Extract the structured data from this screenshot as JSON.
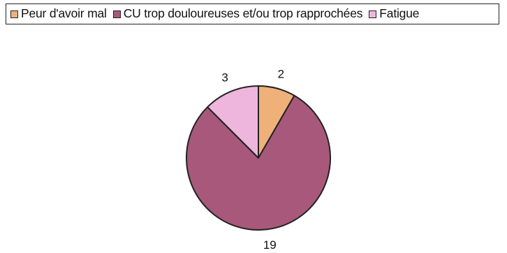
{
  "chart_data": {
    "type": "pie",
    "categories": [
      "Peur d'avoir mal",
      "CU trop douloureuses et/ou trop rapprochées",
      "Fatigue"
    ],
    "values": [
      2,
      19,
      3
    ],
    "colors": [
      "#f0b07a",
      "#a8587a",
      "#eeb6dc"
    ],
    "data_labels": [
      "2",
      "19",
      "3"
    ],
    "title": "",
    "legend_position": "top"
  }
}
